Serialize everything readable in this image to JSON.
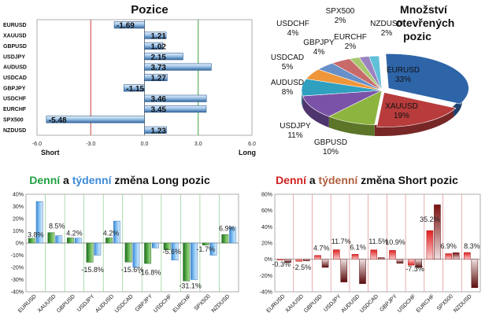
{
  "chart_data": [
    {
      "type": "bar",
      "orientation": "horizontal",
      "title": "Pozice",
      "categories": [
        "EURUSD",
        "XAUUSD",
        "GBPUSD",
        "USDJPY",
        "AUDUSD",
        "USDCAD",
        "GBPJPY",
        "USDCHF",
        "EURCHF",
        "SPX500",
        "NZDUSD"
      ],
      "values": [
        -1.69,
        1.21,
        1.02,
        2.15,
        3.73,
        1.27,
        -1.15,
        3.46,
        3.45,
        -5.48,
        1.23
      ],
      "value_labels": [
        "-1.69",
        "1.21",
        "1.02",
        "2.15",
        "3.73",
        "1.27",
        "-1.15",
        "3.46",
        "3.45",
        "-5.48",
        "1.23"
      ],
      "xlim": [
        -6,
        6
      ],
      "xticks": [
        "-6.0",
        "-3.0",
        "0.0",
        "3.0",
        "6.0"
      ],
      "axis_notes": {
        "left": "Short",
        "right": "Long"
      },
      "colors": {
        "bar": "#8ab4de",
        "bar_dark": "#3a6da8",
        "short_line": "#d04040",
        "long_line": "#40a040"
      }
    },
    {
      "type": "pie",
      "title": [
        "Množství",
        "otevřených",
        "pozic"
      ],
      "slices": [
        {
          "label": "EURUSD",
          "value": 33,
          "text": "33%",
          "color": "#2e64a8"
        },
        {
          "label": "XAUUSD",
          "value": 19,
          "text": "19%",
          "color": "#b83c3c"
        },
        {
          "label": "GBPUSD",
          "value": 10,
          "text": "10%",
          "color": "#8db43e"
        },
        {
          "label": "USDJPY",
          "value": 11,
          "text": "11%",
          "color": "#7a52a8"
        },
        {
          "label": "AUDUSD",
          "value": 8,
          "text": "8%",
          "color": "#2fa0c0"
        },
        {
          "label": "USDCAD",
          "value": 5,
          "text": "5%",
          "color": "#f0963a"
        },
        {
          "label": "GBPJPY",
          "value": 4,
          "text": "4%",
          "color": "#6890c8"
        },
        {
          "label": "USDCHF",
          "value": 4,
          "text": "4%",
          "color": "#c86a6a"
        },
        {
          "label": "EURCHF",
          "value": 2,
          "text": "2%",
          "color": "#a8c870"
        },
        {
          "label": "SPX500",
          "value": 2,
          "text": "2%",
          "color": "#9a82c0"
        },
        {
          "label": "NZDUSD",
          "value": 2,
          "text": "2%",
          "color": "#60c0d8"
        }
      ]
    },
    {
      "type": "bar",
      "title_parts": [
        {
          "text": "Denní",
          "color": "#20a040"
        },
        {
          "text": " a ",
          "color": "#111111"
        },
        {
          "text": "týdenní",
          "color": "#3c8ad8"
        },
        {
          "text": " změna Long pozic",
          "color": "#111111"
        }
      ],
      "categories": [
        "EURUSD",
        "XAUUSD",
        "GBPUSD",
        "USDJPY",
        "AUDUSD",
        "USDCAD",
        "GBPJPY",
        "USDCHF",
        "EURCHF",
        "SPX500",
        "NZDUSD"
      ],
      "series": [
        {
          "name": "Denní",
          "values": [
            3.8,
            8.5,
            4.2,
            -15.8,
            4.2,
            -15.6,
            -16.8,
            -5.6,
            -31.1,
            -1.7,
            6.9
          ],
          "color": "#3c8c3c"
        },
        {
          "name": "týdenní",
          "values": [
            34,
            6,
            4,
            -10,
            18,
            -20,
            -4,
            -14,
            -30,
            -10,
            13
          ],
          "color": "#5aabe8"
        }
      ],
      "data_labels": [
        "3.8%",
        "8.5%",
        "4.2%",
        "-15.8%",
        "4.2%",
        "-15.6%",
        "-16.8%",
        "-5.6%",
        "-31.1%",
        "-1.7%",
        "6.9%"
      ],
      "ylim": [
        -40,
        40
      ],
      "yticks": [
        "40%",
        "30%",
        "20%",
        "10%",
        "0%",
        "-10%",
        "-20%",
        "-30%",
        "-40%"
      ]
    },
    {
      "type": "bar",
      "title_parts": [
        {
          "text": "Denní",
          "color": "#d02020"
        },
        {
          "text": " a ",
          "color": "#111111"
        },
        {
          "text": "týdenní",
          "color": "#b06040"
        },
        {
          "text": " změna Short pozic",
          "color": "#111111"
        }
      ],
      "categories": [
        "EURUSD",
        "XAUUSD",
        "GBPUSD",
        "USDJPY",
        "AUDUSD",
        "USDCAD",
        "GBPJPY",
        "USDCHF",
        "EURCHF",
        "SPX500",
        "NZDUSD"
      ],
      "series": [
        {
          "name": "Denní",
          "values": [
            -0.3,
            -2.5,
            4.7,
            11.7,
            6.1,
            11.5,
            10.9,
            -7.3,
            35.2,
            6.9,
            8.3
          ],
          "color": "#d02020"
        },
        {
          "name": "týdenní",
          "values": [
            -4,
            -2,
            -10,
            -28,
            -30,
            2,
            -5,
            -10,
            67,
            8,
            -35
          ],
          "color": "#6a1414"
        }
      ],
      "data_labels": [
        "-0.3%",
        "-2.5%",
        "4.7%",
        "11.7%",
        "6.1%",
        "11.5%",
        "10.9%",
        "-7.3%",
        "35.2%",
        "6.9%",
        "8.3%"
      ],
      "ylim": [
        -40,
        80
      ],
      "yticks": [
        "80%",
        "60%",
        "40%",
        "20%",
        "0%",
        "-20%",
        "-40%"
      ]
    }
  ]
}
